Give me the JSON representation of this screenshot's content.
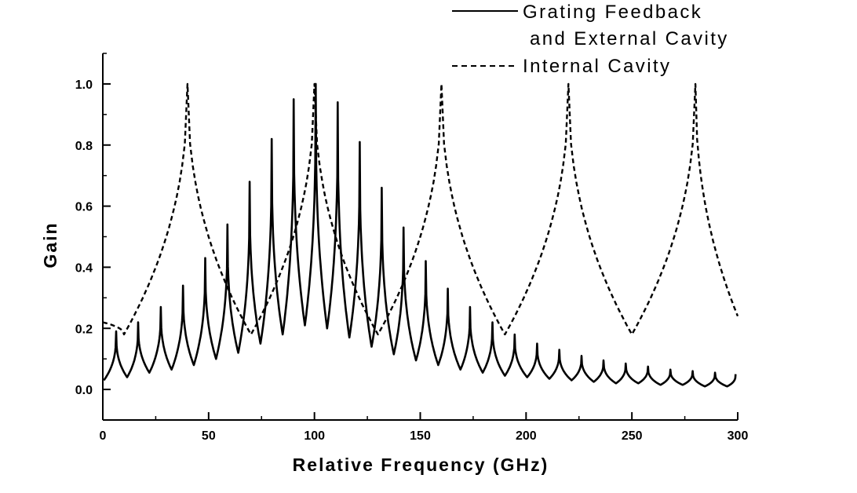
{
  "chart_data": {
    "type": "line",
    "title": "",
    "xlabel": "Relative Frequency (GHz)",
    "ylabel": "Gain",
    "xlim": [
      0,
      300
    ],
    "ylim": [
      -0.1,
      1.1
    ],
    "x_ticks": [
      0,
      50,
      100,
      150,
      200,
      250,
      300
    ],
    "x_tick_labels": [
      "0",
      "50",
      "100",
      "150",
      "200",
      "250",
      "300"
    ],
    "y_ticks": [
      0.0,
      0.2,
      0.4,
      0.6,
      0.8,
      1.0
    ],
    "y_tick_labels": [
      "0.0",
      "0.2",
      "0.4",
      "0.6",
      "0.8",
      "1.0"
    ],
    "grid": false,
    "legend_position": "top-right, above plot",
    "series": [
      {
        "name": "Grating Feedback and External Cavity",
        "legend_lines": [
          "Grating Feedback",
          "and External Cavity"
        ],
        "style": "solid",
        "color": "#000000",
        "peak_x": [
          6.3,
          16.7,
          27.4,
          37.9,
          48.4,
          58.9,
          69.4,
          79.8,
          90.2,
          100.6,
          111.0,
          121.4,
          131.8,
          142.1,
          152.6,
          163.0,
          173.5,
          184.1,
          194.6,
          205.2,
          215.7,
          226.2,
          236.6,
          247.1,
          257.6,
          268.2,
          278.7,
          289.3
        ],
        "peak_y": [
          0.19,
          0.22,
          0.27,
          0.34,
          0.43,
          0.54,
          0.68,
          0.82,
          0.95,
          1.0,
          0.94,
          0.81,
          0.66,
          0.53,
          0.42,
          0.33,
          0.27,
          0.22,
          0.18,
          0.15,
          0.13,
          0.11,
          0.095,
          0.085,
          0.075,
          0.065,
          0.06,
          0.055
        ],
        "valley_x": [
          0.5,
          11.5,
          22.0,
          32.5,
          43.0,
          53.5,
          64.0,
          74.5,
          85.0,
          95.5,
          106.0,
          116.5,
          127.0,
          137.5,
          148.0,
          158.5,
          169.0,
          179.5,
          190.0,
          200.5,
          211.0,
          221.5,
          232.0,
          242.5,
          253.0,
          263.5,
          274.0,
          284.5,
          295.0,
          299.0
        ],
        "valley_y": [
          0.03,
          0.04,
          0.055,
          0.065,
          0.08,
          0.1,
          0.12,
          0.15,
          0.18,
          0.21,
          0.2,
          0.17,
          0.14,
          0.115,
          0.095,
          0.08,
          0.065,
          0.055,
          0.045,
          0.04,
          0.035,
          0.03,
          0.025,
          0.02,
          0.02,
          0.015,
          0.015,
          0.01,
          0.01,
          0.05
        ]
      },
      {
        "name": "Internal Cavity",
        "legend_lines": [
          "Internal Cavity"
        ],
        "style": "dashed",
        "color": "#000000",
        "peak_x": [
          40,
          100,
          160,
          220,
          280
        ],
        "peak_y": [
          1.0,
          1.0,
          1.0,
          1.0,
          1.0
        ],
        "valley_x": [
          10,
          70,
          130,
          190,
          250
        ],
        "valley_y": [
          0.18,
          0.18,
          0.18,
          0.18,
          0.18
        ],
        "start_x": 0,
        "start_y": 0.22,
        "end_x": 300,
        "end_y": 0.24
      }
    ]
  }
}
